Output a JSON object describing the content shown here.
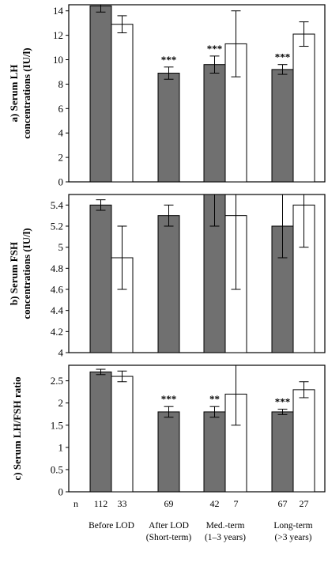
{
  "chart_data": [
    {
      "type": "bar",
      "panel": "a",
      "ylabel_line1": "a) Serum LH",
      "ylabel_line2": "concentrations (IU/l)",
      "ylim": [
        0,
        14.5
      ],
      "yticks": [
        "0",
        "2",
        "4",
        "6",
        "8",
        "10",
        "12",
        "14"
      ],
      "yticks_num": [
        0,
        2,
        4,
        6,
        8,
        10,
        12,
        14
      ],
      "grid": false,
      "series": [
        {
          "color": "#707070",
          "values": [
            14.4,
            8.9,
            9.6,
            9.2
          ],
          "err": [
            0.5,
            0.5,
            0.7,
            0.4
          ],
          "stars": [
            "",
            "***",
            "***",
            "***"
          ]
        },
        {
          "color": "#ffffff",
          "values": [
            12.9,
            null,
            11.3,
            12.1
          ],
          "err": [
            0.7,
            null,
            2.7,
            1.0
          ],
          "stars": [
            "",
            "",
            "",
            ""
          ]
        }
      ]
    },
    {
      "type": "bar",
      "panel": "b",
      "ylabel_line1": "b) Serum FSH",
      "ylabel_line2": "concentrations (IU/l)",
      "ylim": [
        4.0,
        5.5
      ],
      "yticks": [
        "4",
        "4.2",
        "4.4",
        "4.6",
        "4.8",
        "5",
        "5.2",
        "5.4"
      ],
      "yticks_num": [
        4.0,
        4.2,
        4.4,
        4.6,
        4.8,
        5.0,
        5.2,
        5.4
      ],
      "grid": false,
      "series": [
        {
          "color": "#707070",
          "values": [
            5.4,
            5.3,
            5.5,
            5.2
          ],
          "err": [
            0.05,
            0.1,
            0.3,
            0.3
          ],
          "stars": [
            "",
            "",
            "",
            ""
          ]
        },
        {
          "color": "#ffffff",
          "values": [
            4.9,
            null,
            5.3,
            5.4
          ],
          "err": [
            0.3,
            null,
            0.7,
            0.4
          ],
          "stars": [
            "",
            "",
            "",
            ""
          ]
        }
      ]
    },
    {
      "type": "bar",
      "panel": "c",
      "ylabel_line1": "c) Serum LH/FSH ratio",
      "ylabel_line2": "",
      "ylim": [
        0,
        2.85
      ],
      "yticks": [
        "0",
        "0.5",
        "1",
        "1.5",
        "2",
        "2.5"
      ],
      "yticks_num": [
        0,
        0.5,
        1.0,
        1.5,
        2.0,
        2.5
      ],
      "grid": false,
      "series": [
        {
          "color": "#707070",
          "values": [
            2.7,
            1.8,
            1.8,
            1.8
          ],
          "err": [
            0.06,
            0.12,
            0.12,
            0.06
          ],
          "stars": [
            "",
            "***",
            "**",
            "***"
          ]
        },
        {
          "color": "#ffffff",
          "values": [
            2.6,
            null,
            2.2,
            2.3
          ],
          "err": [
            0.12,
            null,
            0.7,
            0.18
          ],
          "stars": [
            "",
            "",
            "",
            ""
          ]
        }
      ]
    }
  ],
  "n_label": "n",
  "groups": [
    {
      "n": [
        "112",
        "33"
      ],
      "label1": "Before LOD",
      "label2": ""
    },
    {
      "n": [
        "69"
      ],
      "label1": "After LOD",
      "label2": "(Short-term)"
    },
    {
      "n": [
        "42",
        "7"
      ],
      "label1": "Med.-term",
      "label2": "(1–3 years)"
    },
    {
      "n": [
        "67",
        "27"
      ],
      "label1": "Long-term",
      "label2": "(>3 years)"
    }
  ]
}
